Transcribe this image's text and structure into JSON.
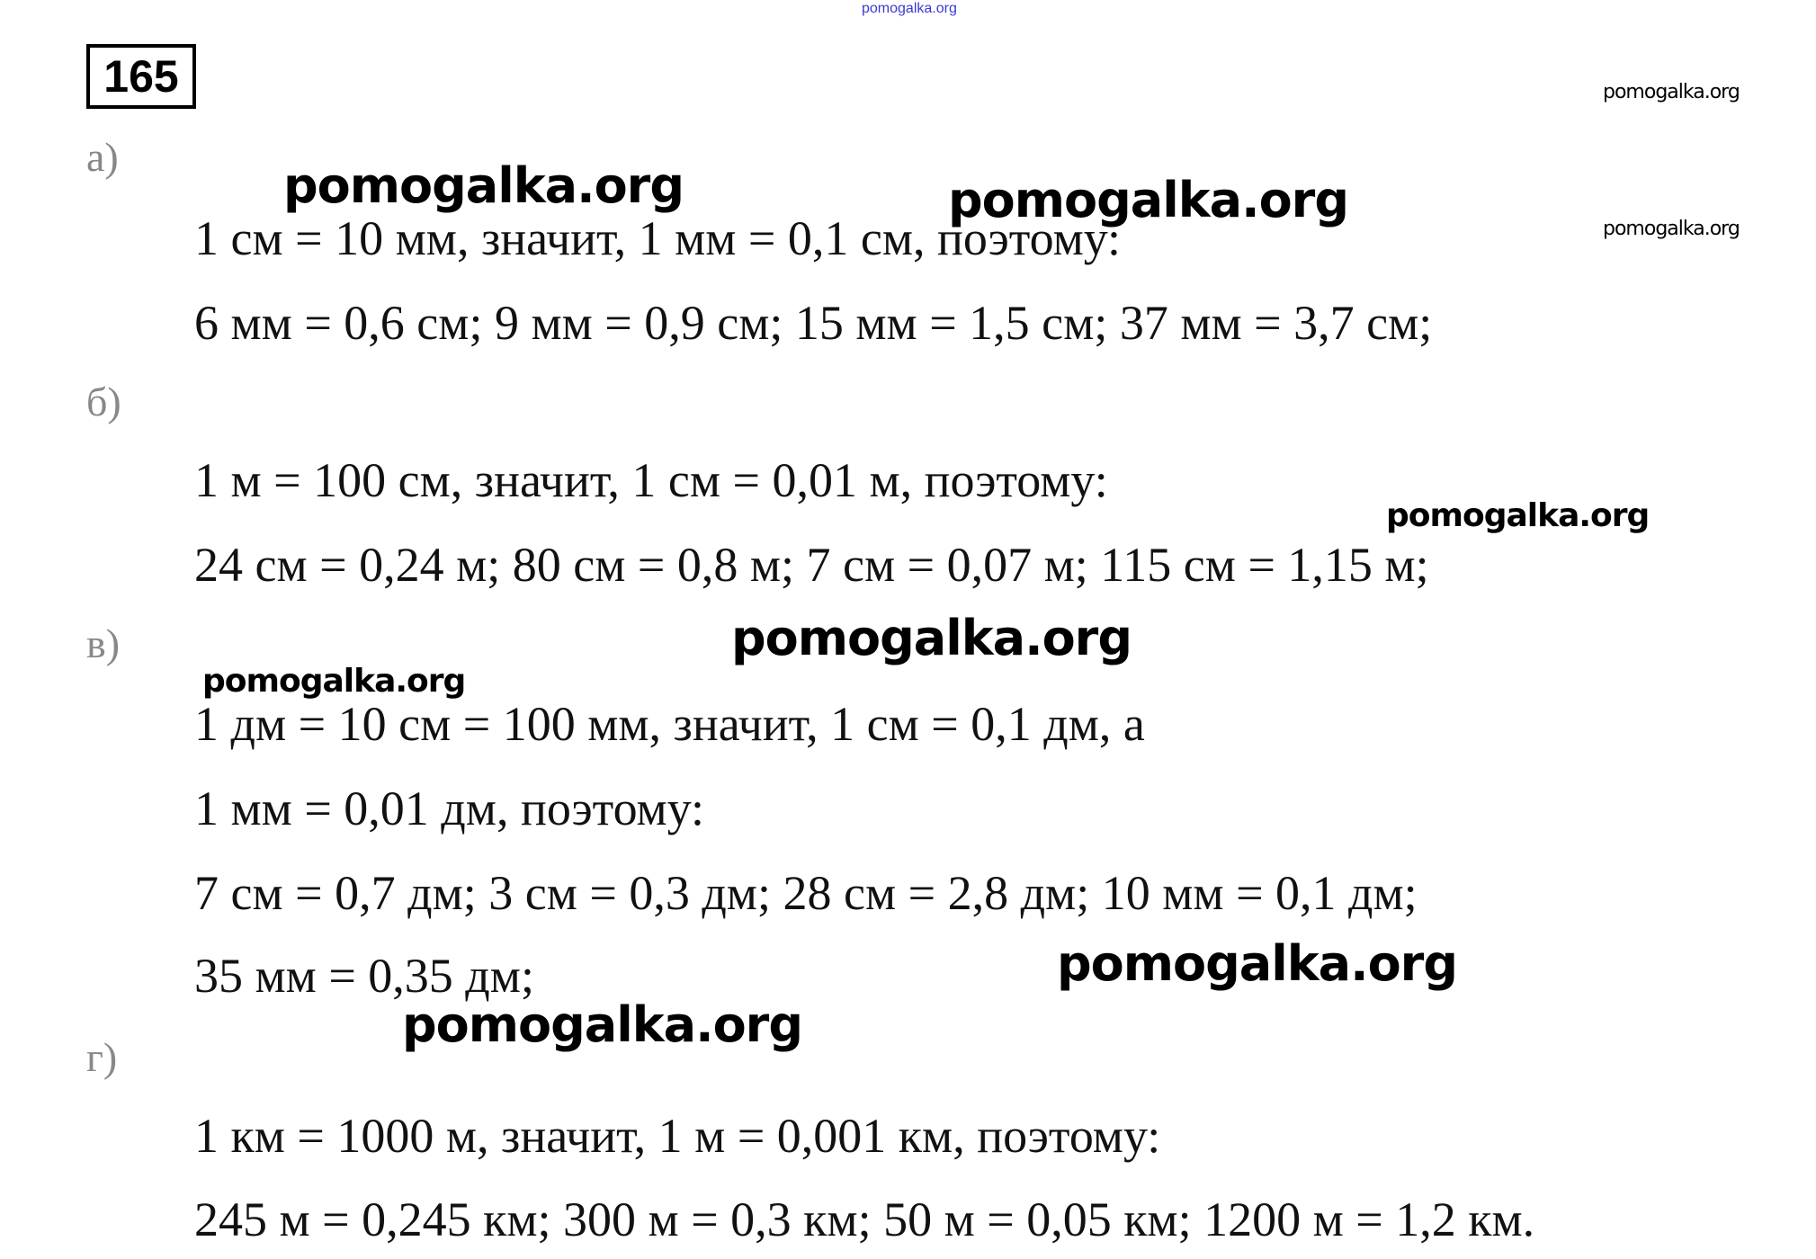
{
  "header": {
    "top_watermark": "pomogalka.org",
    "problem_number": "165"
  },
  "watermark": "pomogalka.org",
  "sections": [
    {
      "label": "а)",
      "lines": [
        "1 см = 10 мм, значит, 1 мм = 0,1 см, поэтому:",
        "6 мм = 0,6 см;  9 мм = 0,9 см;  15 мм = 1,5 см;  37 мм = 3,7 см;"
      ]
    },
    {
      "label": "б)",
      "lines": [
        "1 м = 100 см, значит, 1 см = 0,01 м, поэтому:",
        "24 см = 0,24 м;  80 см = 0,8 м;  7 см = 0,07 м;  115 см = 1,15 м;"
      ]
    },
    {
      "label": "в)",
      "lines": [
        "1 дм = 10 см = 100 мм, значит, 1 см = 0,1 дм, а",
        "1 мм = 0,01 дм, поэтому:",
        "7 см = 0,7 дм;  3 см = 0,3 дм;  28 см = 2,8 дм;  10 мм = 0,1 дм;",
        "35 мм = 0,35 дм;"
      ]
    },
    {
      "label": "г)",
      "lines": [
        "1 км = 1000 м, значит, 1 м = 0,001 км, поэтому:",
        "245 м = 0,245 км;  300 м = 0,3 км;  50 м = 0,05 км;  1200 м = 1,2 км."
      ]
    }
  ]
}
